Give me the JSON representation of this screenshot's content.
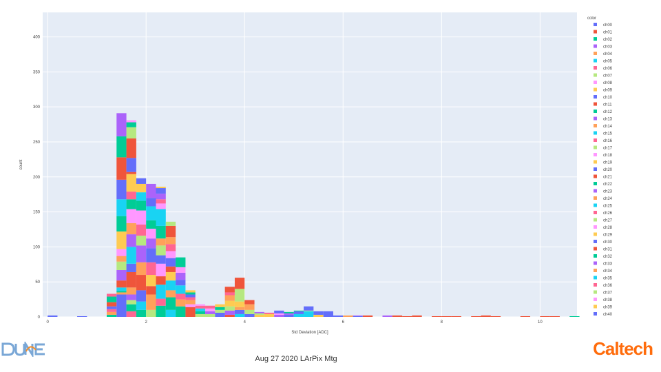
{
  "footer": {
    "text": "Aug 27 2020 LArPix Mtg"
  },
  "logos": {
    "left": "DUNE",
    "right": "Caltech",
    "right_color": "#ff6c0c"
  },
  "chart_data": {
    "type": "bar",
    "stacked": true,
    "bin_width": 0.2,
    "xlabel": "Std Deviation [ADC]",
    "ylabel": "count",
    "xlim": [
      -0.1,
      10.75
    ],
    "ylim": [
      0,
      435
    ],
    "x_ticks": [
      0,
      2,
      4,
      6,
      8,
      10
    ],
    "y_ticks": [
      0,
      50,
      100,
      150,
      200,
      250,
      300,
      350,
      400
    ],
    "grid": true,
    "legend_title": "color",
    "legend_position": "right",
    "palette": [
      "#636efa",
      "#ef553b",
      "#00cc96",
      "#ab63fa",
      "#ffa15a",
      "#19d3f3",
      "#ff6692",
      "#b6e880",
      "#ff97ff",
      "#fecb52"
    ],
    "series_names": [
      "ch00",
      "ch01",
      "ch02",
      "ch03",
      "ch04",
      "ch05",
      "ch06",
      "ch07",
      "ch08",
      "ch09",
      "ch10",
      "ch11",
      "ch12",
      "ch13",
      "ch14",
      "ch15",
      "ch16",
      "ch17",
      "ch18",
      "ch19",
      "ch20",
      "ch21",
      "ch22",
      "ch23",
      "ch24",
      "ch25",
      "ch26",
      "ch27",
      "ch28",
      "ch29",
      "ch30",
      "ch31",
      "ch32",
      "ch33",
      "ch34",
      "ch35",
      "ch36",
      "ch37",
      "ch38",
      "ch39",
      "ch40"
    ],
    "bins": [
      {
        "x": 0.0,
        "layers": [
          [
            0,
            2
          ]
        ]
      },
      {
        "x": 0.6,
        "layers": [
          [
            0,
            1
          ]
        ]
      },
      {
        "x": 1.2,
        "layers": [
          [
            2,
            3
          ],
          [
            4,
            4
          ],
          [
            6,
            4
          ],
          [
            0,
            4
          ],
          [
            1,
            6
          ],
          [
            2,
            8
          ],
          [
            6,
            4
          ]
        ]
      },
      {
        "x": 1.4,
        "layers": [
          [
            0,
            32
          ],
          [
            4,
            3
          ],
          [
            2,
            2
          ],
          [
            5,
            5
          ],
          [
            1,
            10
          ],
          [
            3,
            15
          ],
          [
            7,
            12
          ],
          [
            4,
            8
          ],
          [
            8,
            10
          ],
          [
            9,
            25
          ],
          [
            2,
            22
          ],
          [
            5,
            24
          ],
          [
            0,
            28
          ],
          [
            1,
            32
          ],
          [
            2,
            30
          ],
          [
            3,
            33
          ]
        ]
      },
      {
        "x": 1.6,
        "layers": [
          [
            6,
            8
          ],
          [
            2,
            10
          ],
          [
            7,
            6
          ],
          [
            3,
            8
          ],
          [
            4,
            10
          ],
          [
            1,
            22
          ],
          [
            0,
            12
          ],
          [
            5,
            24
          ],
          [
            3,
            18
          ],
          [
            4,
            16
          ],
          [
            8,
            20
          ],
          [
            2,
            14
          ],
          [
            6,
            11
          ],
          [
            9,
            25
          ],
          [
            1,
            3
          ],
          [
            0,
            20
          ],
          [
            1,
            28
          ],
          [
            7,
            16
          ],
          [
            2,
            7
          ],
          [
            8,
            3
          ]
        ]
      },
      {
        "x": 1.8,
        "layers": [
          [
            2,
            10
          ],
          [
            5,
            12
          ],
          [
            0,
            16
          ],
          [
            1,
            22
          ],
          [
            4,
            18
          ],
          [
            3,
            24
          ],
          [
            7,
            14
          ],
          [
            6,
            16
          ],
          [
            8,
            20
          ],
          [
            2,
            14
          ],
          [
            5,
            12
          ],
          [
            9,
            12
          ],
          [
            0,
            8
          ]
        ]
      },
      {
        "x": 2.0,
        "layers": [
          [
            7,
            10
          ],
          [
            4,
            22
          ],
          [
            1,
            12
          ],
          [
            9,
            16
          ],
          [
            6,
            18
          ],
          [
            0,
            20
          ],
          [
            3,
            14
          ],
          [
            8,
            14
          ],
          [
            2,
            12
          ],
          [
            5,
            20
          ],
          [
            0,
            12
          ],
          [
            3,
            20
          ]
        ]
      },
      {
        "x": 2.2,
        "layers": [
          [
            2,
            16
          ],
          [
            6,
            10
          ],
          [
            5,
            20
          ],
          [
            1,
            12
          ],
          [
            8,
            18
          ],
          [
            0,
            12
          ],
          [
            7,
            14
          ],
          [
            4,
            10
          ],
          [
            2,
            18
          ],
          [
            5,
            24
          ],
          [
            8,
            8
          ],
          [
            6,
            6
          ],
          [
            3,
            8
          ],
          [
            0,
            8
          ],
          [
            9,
            2
          ]
        ]
      },
      {
        "x": 2.4,
        "layers": [
          [
            5,
            10
          ],
          [
            2,
            18
          ],
          [
            4,
            10
          ],
          [
            5,
            14
          ],
          [
            9,
            12
          ],
          [
            1,
            8
          ],
          [
            0,
            12
          ],
          [
            8,
            10
          ],
          [
            6,
            10
          ],
          [
            4,
            10
          ],
          [
            1,
            16
          ],
          [
            7,
            6
          ]
        ]
      },
      {
        "x": 2.6,
        "layers": [
          [
            2,
            15
          ],
          [
            4,
            10
          ],
          [
            6,
            8
          ],
          [
            5,
            12
          ],
          [
            0,
            8
          ],
          [
            3,
            10
          ],
          [
            8,
            8
          ],
          [
            2,
            14
          ]
        ]
      },
      {
        "x": 2.8,
        "layers": [
          [
            1,
            14
          ],
          [
            8,
            4
          ],
          [
            4,
            6
          ],
          [
            6,
            4
          ],
          [
            0,
            4
          ],
          [
            2,
            3
          ],
          [
            9,
            3
          ]
        ]
      },
      {
        "x": 3.0,
        "layers": [
          [
            7,
            4
          ],
          [
            2,
            4
          ],
          [
            5,
            4
          ],
          [
            6,
            4
          ],
          [
            8,
            2
          ]
        ]
      },
      {
        "x": 3.2,
        "layers": [
          [
            7,
            4
          ],
          [
            3,
            4
          ],
          [
            8,
            4
          ],
          [
            6,
            4
          ]
        ]
      },
      {
        "x": 3.4,
        "layers": [
          [
            0,
            6
          ],
          [
            7,
            4
          ],
          [
            2,
            4
          ],
          [
            9,
            4
          ]
        ]
      },
      {
        "x": 3.6,
        "layers": [
          [
            1,
            3
          ],
          [
            3,
            6
          ],
          [
            7,
            6
          ],
          [
            9,
            8
          ],
          [
            4,
            8
          ],
          [
            6,
            4
          ],
          [
            1,
            8
          ]
        ]
      },
      {
        "x": 3.8,
        "layers": [
          [
            5,
            4
          ],
          [
            0,
            6
          ],
          [
            4,
            4
          ],
          [
            9,
            8
          ],
          [
            7,
            18
          ],
          [
            1,
            16
          ]
        ]
      },
      {
        "x": 4.0,
        "layers": [
          [
            0,
            4
          ],
          [
            7,
            6
          ],
          [
            4,
            8
          ],
          [
            1,
            6
          ]
        ]
      },
      {
        "x": 4.2,
        "layers": [
          [
            9,
            3
          ],
          [
            7,
            2
          ],
          [
            3,
            2
          ]
        ]
      },
      {
        "x": 4.4,
        "layers": [
          [
            9,
            4
          ],
          [
            6,
            2
          ]
        ]
      },
      {
        "x": 4.6,
        "layers": [
          [
            3,
            3
          ],
          [
            8,
            2
          ],
          [
            0,
            4
          ]
        ]
      },
      {
        "x": 4.8,
        "layers": [
          [
            0,
            3
          ],
          [
            3,
            2
          ],
          [
            2,
            2
          ]
        ]
      },
      {
        "x": 5.0,
        "layers": [
          [
            5,
            4
          ],
          [
            0,
            4
          ],
          [
            2,
            1
          ]
        ]
      },
      {
        "x": 5.2,
        "layers": [
          [
            5,
            8
          ],
          [
            7,
            1
          ],
          [
            0,
            6
          ]
        ]
      },
      {
        "x": 5.4,
        "layers": [
          [
            9,
            3
          ],
          [
            0,
            5
          ]
        ]
      },
      {
        "x": 5.6,
        "layers": [
          [
            0,
            8
          ]
        ]
      },
      {
        "x": 5.8,
        "layers": [
          [
            0,
            2
          ]
        ]
      },
      {
        "x": 6.0,
        "layers": [
          [
            4,
            2
          ]
        ]
      },
      {
        "x": 6.2,
        "layers": [
          [
            0,
            1
          ],
          [
            3,
            1
          ]
        ]
      },
      {
        "x": 6.4,
        "layers": [
          [
            1,
            2
          ]
        ]
      },
      {
        "x": 6.8,
        "layers": [
          [
            3,
            2
          ]
        ]
      },
      {
        "x": 7.0,
        "layers": [
          [
            1,
            2
          ]
        ]
      },
      {
        "x": 7.2,
        "layers": [
          [
            1,
            1
          ]
        ]
      },
      {
        "x": 7.4,
        "layers": [
          [
            1,
            2
          ]
        ]
      },
      {
        "x": 7.8,
        "layers": [
          [
            1,
            1
          ]
        ]
      },
      {
        "x": 8.0,
        "layers": [
          [
            1,
            1
          ]
        ]
      },
      {
        "x": 8.2,
        "layers": [
          [
            1,
            1
          ]
        ]
      },
      {
        "x": 8.6,
        "layers": [
          [
            1,
            1
          ]
        ]
      },
      {
        "x": 8.8,
        "layers": [
          [
            1,
            2
          ]
        ]
      },
      {
        "x": 9.0,
        "layers": [
          [
            1,
            1
          ]
        ]
      },
      {
        "x": 9.6,
        "layers": [
          [
            1,
            1
          ]
        ]
      },
      {
        "x": 10.0,
        "layers": [
          [
            1,
            1
          ]
        ]
      },
      {
        "x": 10.2,
        "layers": [
          [
            1,
            1
          ]
        ]
      },
      {
        "x": 10.6,
        "layers": [
          [
            2,
            1
          ]
        ]
      }
    ]
  }
}
